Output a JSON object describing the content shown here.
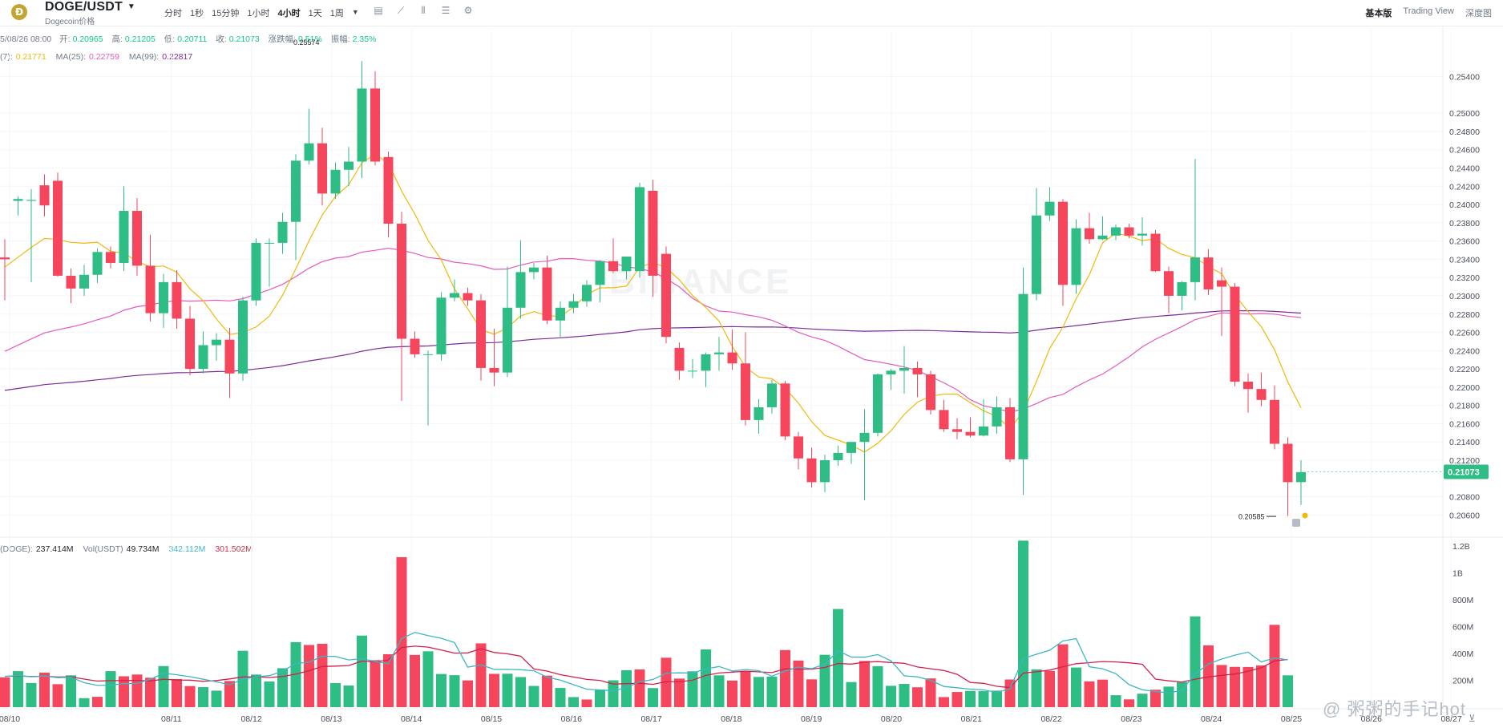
{
  "header": {
    "logo_glyph": "Ð",
    "pair": "DOGE/USDT",
    "subname": "Dogecoin价格",
    "intervals": [
      "分时",
      "1秒",
      "15分钟",
      "1小时",
      "4小时",
      "1天",
      "1周"
    ],
    "active_interval": "4小时",
    "views": [
      "基本版",
      "Trading View",
      "深度图"
    ],
    "active_view": "基本版"
  },
  "ohlc": {
    "date": "5/08/26 08:00",
    "open_label": "开:",
    "open": "0.20965",
    "high_label": "高:",
    "high": "0.21205",
    "low_label": "低:",
    "low": "0.20711",
    "close_label": "收:",
    "close": "0.21073",
    "change_label": "涨跌幅:",
    "change": "0.51%",
    "amp_label": "振幅:",
    "amp": "2.35%"
  },
  "ma": {
    "ma7_label": "(7):",
    "ma7": "0.21771",
    "ma25_label": "MA(25):",
    "ma25": "0.22759",
    "ma99_label": "MA(99):",
    "ma99": "0.22817"
  },
  "volume": {
    "label": "(DOGE):",
    "doge": "237.414M",
    "usdt_label": "Vol(USDT)",
    "usdt": "49.734M",
    "ma1": "342.112M",
    "ma2": "301.502M"
  },
  "colors": {
    "up": "#2ebd85",
    "down": "#f6465d",
    "ma7": "#f0b90b",
    "ma25": "#e45bbd",
    "ma99": "#7b2b9a",
    "vma1": "#3cb6c6",
    "vma2": "#d3204d",
    "text_green": "#0ecb81",
    "text_pink": "#cf304a"
  },
  "watermark_text": "BINANCE",
  "overlay_watermark": "@ 粥粥的手记hot",
  "icons": [
    "candle-settings-icon",
    "indicator-icon",
    "compare-icon",
    "layout-icon",
    "gear-icon"
  ],
  "chart_data": {
    "type": "candlestick",
    "interval": "4小时",
    "price_axis": [
      "0.25400",
      "0.25000",
      "0.24800",
      "0.24600",
      "0.24400",
      "0.24200",
      "0.24000",
      "0.23800",
      "0.23600",
      "0.23400",
      "0.23200",
      "0.23000",
      "0.22800",
      "0.22600",
      "0.22400",
      "0.22200",
      "0.22000",
      "0.21800",
      "0.21600",
      "0.21400",
      "0.21200",
      "0.20800",
      "0.20600"
    ],
    "ylim": [
      0.2041,
      0.2573
    ],
    "current_price": "0.21073",
    "high_marker": "0.25574",
    "low_marker": "0.20585",
    "volume_axis": [
      "1.2B",
      "1B",
      "800M",
      "600M",
      "400M",
      "200M"
    ],
    "volume_ylim": [
      0,
      1230
    ],
    "date_labels": [
      "08/10",
      "08/11",
      "08/12",
      "08/13",
      "08/14",
      "08/15",
      "08/16",
      "08/17",
      "08/18",
      "08/19",
      "08/20",
      "08/21",
      "08/22",
      "08/23",
      "08/24",
      "08/25",
      "08/26",
      "08/27",
      "08"
    ],
    "candles": [
      {
        "o": 0.2342,
        "h": 0.2362,
        "l": 0.2295,
        "c": 0.234
      },
      {
        "o": 0.2404,
        "h": 0.2409,
        "l": 0.2388,
        "c": 0.2406
      },
      {
        "o": 0.2404,
        "h": 0.2417,
        "l": 0.2315,
        "c": 0.2405
      },
      {
        "o": 0.2421,
        "h": 0.2433,
        "l": 0.2387,
        "c": 0.2399
      },
      {
        "o": 0.2426,
        "h": 0.2435,
        "l": 0.2321,
        "c": 0.2322
      },
      {
        "o": 0.2322,
        "h": 0.233,
        "l": 0.2292,
        "c": 0.2308
      },
      {
        "o": 0.2308,
        "h": 0.2334,
        "l": 0.23,
        "c": 0.2323
      },
      {
        "o": 0.2323,
        "h": 0.2352,
        "l": 0.2314,
        "c": 0.2348
      },
      {
        "o": 0.2348,
        "h": 0.2354,
        "l": 0.233,
        "c": 0.2336
      },
      {
        "o": 0.2336,
        "h": 0.242,
        "l": 0.2327,
        "c": 0.2393
      },
      {
        "o": 0.2393,
        "h": 0.2407,
        "l": 0.2322,
        "c": 0.2333
      },
      {
        "o": 0.2333,
        "h": 0.2367,
        "l": 0.2272,
        "c": 0.2281
      },
      {
        "o": 0.2281,
        "h": 0.2324,
        "l": 0.2265,
        "c": 0.2315
      },
      {
        "o": 0.2315,
        "h": 0.2328,
        "l": 0.2264,
        "c": 0.2275
      },
      {
        "o": 0.2275,
        "h": 0.2289,
        "l": 0.2213,
        "c": 0.222
      },
      {
        "o": 0.222,
        "h": 0.2261,
        "l": 0.2215,
        "c": 0.2246
      },
      {
        "o": 0.2246,
        "h": 0.2259,
        "l": 0.2229,
        "c": 0.2252
      },
      {
        "o": 0.2252,
        "h": 0.2265,
        "l": 0.2188,
        "c": 0.2215
      },
      {
        "o": 0.2215,
        "h": 0.2299,
        "l": 0.2207,
        "c": 0.2295
      },
      {
        "o": 0.2295,
        "h": 0.2363,
        "l": 0.2289,
        "c": 0.2358
      },
      {
        "o": 0.2358,
        "h": 0.2363,
        "l": 0.231,
        "c": 0.2358
      },
      {
        "o": 0.2358,
        "h": 0.2391,
        "l": 0.2346,
        "c": 0.2381
      },
      {
        "o": 0.2381,
        "h": 0.2455,
        "l": 0.2339,
        "c": 0.2448
      },
      {
        "o": 0.2448,
        "h": 0.2505,
        "l": 0.2444,
        "c": 0.2467
      },
      {
        "o": 0.2467,
        "h": 0.2484,
        "l": 0.2399,
        "c": 0.2412
      },
      {
        "o": 0.2412,
        "h": 0.2446,
        "l": 0.2406,
        "c": 0.2438
      },
      {
        "o": 0.2438,
        "h": 0.2463,
        "l": 0.242,
        "c": 0.2447
      },
      {
        "o": 0.2447,
        "h": 0.2557,
        "l": 0.2429,
        "c": 0.2527
      },
      {
        "o": 0.2527,
        "h": 0.2546,
        "l": 0.2443,
        "c": 0.2447
      },
      {
        "o": 0.2452,
        "h": 0.2458,
        "l": 0.2364,
        "c": 0.2379
      },
      {
        "o": 0.2379,
        "h": 0.2392,
        "l": 0.2185,
        "c": 0.2253
      },
      {
        "o": 0.2253,
        "h": 0.2261,
        "l": 0.2232,
        "c": 0.2236
      },
      {
        "o": 0.2236,
        "h": 0.224,
        "l": 0.2158,
        "c": 0.2236
      },
      {
        "o": 0.2236,
        "h": 0.2304,
        "l": 0.2229,
        "c": 0.2298
      },
      {
        "o": 0.2298,
        "h": 0.2318,
        "l": 0.2294,
        "c": 0.2303
      },
      {
        "o": 0.2303,
        "h": 0.2309,
        "l": 0.2289,
        "c": 0.2295
      },
      {
        "o": 0.2295,
        "h": 0.2302,
        "l": 0.2207,
        "c": 0.2221
      },
      {
        "o": 0.2221,
        "h": 0.2264,
        "l": 0.2201,
        "c": 0.2216
      },
      {
        "o": 0.2216,
        "h": 0.2332,
        "l": 0.2211,
        "c": 0.2287
      },
      {
        "o": 0.2287,
        "h": 0.2361,
        "l": 0.2275,
        "c": 0.2326
      },
      {
        "o": 0.2326,
        "h": 0.2336,
        "l": 0.2318,
        "c": 0.2331
      },
      {
        "o": 0.2331,
        "h": 0.2344,
        "l": 0.2269,
        "c": 0.2273
      },
      {
        "o": 0.2273,
        "h": 0.2294,
        "l": 0.2255,
        "c": 0.2287
      },
      {
        "o": 0.2287,
        "h": 0.2302,
        "l": 0.2281,
        "c": 0.2294
      },
      {
        "o": 0.2294,
        "h": 0.2317,
        "l": 0.2288,
        "c": 0.2312
      },
      {
        "o": 0.2312,
        "h": 0.2339,
        "l": 0.2293,
        "c": 0.2338
      },
      {
        "o": 0.2338,
        "h": 0.2363,
        "l": 0.2325,
        "c": 0.2327
      },
      {
        "o": 0.2327,
        "h": 0.2339,
        "l": 0.2318,
        "c": 0.2343
      },
      {
        "o": 0.2327,
        "h": 0.2424,
        "l": 0.232,
        "c": 0.2419
      },
      {
        "o": 0.2415,
        "h": 0.2427,
        "l": 0.2299,
        "c": 0.2322
      },
      {
        "o": 0.2346,
        "h": 0.2354,
        "l": 0.2248,
        "c": 0.2255
      },
      {
        "o": 0.2243,
        "h": 0.2249,
        "l": 0.2208,
        "c": 0.2218
      },
      {
        "o": 0.2218,
        "h": 0.2231,
        "l": 0.221,
        "c": 0.2218
      },
      {
        "o": 0.2218,
        "h": 0.2238,
        "l": 0.22,
        "c": 0.2236
      },
      {
        "o": 0.2236,
        "h": 0.2255,
        "l": 0.2218,
        "c": 0.2238
      },
      {
        "o": 0.2238,
        "h": 0.2263,
        "l": 0.2219,
        "c": 0.2226
      },
      {
        "o": 0.2226,
        "h": 0.226,
        "l": 0.2158,
        "c": 0.2164
      },
      {
        "o": 0.2164,
        "h": 0.2187,
        "l": 0.2149,
        "c": 0.2178
      },
      {
        "o": 0.2178,
        "h": 0.2208,
        "l": 0.2171,
        "c": 0.2204
      },
      {
        "o": 0.2204,
        "h": 0.2207,
        "l": 0.2142,
        "c": 0.2146
      },
      {
        "o": 0.2146,
        "h": 0.2151,
        "l": 0.211,
        "c": 0.2122
      },
      {
        "o": 0.2122,
        "h": 0.2134,
        "l": 0.209,
        "c": 0.2096
      },
      {
        "o": 0.2096,
        "h": 0.2126,
        "l": 0.2085,
        "c": 0.212
      },
      {
        "o": 0.212,
        "h": 0.2136,
        "l": 0.2114,
        "c": 0.2128
      },
      {
        "o": 0.2128,
        "h": 0.2137,
        "l": 0.2116,
        "c": 0.214
      },
      {
        "o": 0.214,
        "h": 0.2176,
        "l": 0.2076,
        "c": 0.215
      },
      {
        "o": 0.215,
        "h": 0.2215,
        "l": 0.2146,
        "c": 0.2214
      },
      {
        "o": 0.2214,
        "h": 0.222,
        "l": 0.2197,
        "c": 0.2218
      },
      {
        "o": 0.2218,
        "h": 0.2245,
        "l": 0.2193,
        "c": 0.2221
      },
      {
        "o": 0.2221,
        "h": 0.2228,
        "l": 0.2189,
        "c": 0.2214
      },
      {
        "o": 0.2214,
        "h": 0.2218,
        "l": 0.217,
        "c": 0.2175
      },
      {
        "o": 0.2175,
        "h": 0.2186,
        "l": 0.2151,
        "c": 0.2154
      },
      {
        "o": 0.2154,
        "h": 0.2166,
        "l": 0.2143,
        "c": 0.2151
      },
      {
        "o": 0.2151,
        "h": 0.2167,
        "l": 0.2145,
        "c": 0.2147
      },
      {
        "o": 0.2147,
        "h": 0.2187,
        "l": 0.2146,
        "c": 0.2157
      },
      {
        "o": 0.2157,
        "h": 0.219,
        "l": 0.2149,
        "c": 0.2178
      },
      {
        "o": 0.2178,
        "h": 0.2188,
        "l": 0.2118,
        "c": 0.2121
      },
      {
        "o": 0.2121,
        "h": 0.2331,
        "l": 0.2082,
        "c": 0.2302
      },
      {
        "o": 0.2302,
        "h": 0.2418,
        "l": 0.2295,
        "c": 0.2388
      },
      {
        "o": 0.2388,
        "h": 0.2419,
        "l": 0.2382,
        "c": 0.2403
      },
      {
        "o": 0.2403,
        "h": 0.2406,
        "l": 0.2289,
        "c": 0.2312
      },
      {
        "o": 0.2312,
        "h": 0.2384,
        "l": 0.2302,
        "c": 0.2374
      },
      {
        "o": 0.2374,
        "h": 0.2391,
        "l": 0.2357,
        "c": 0.2362
      },
      {
        "o": 0.2362,
        "h": 0.2387,
        "l": 0.2361,
        "c": 0.2366
      },
      {
        "o": 0.2366,
        "h": 0.2378,
        "l": 0.2361,
        "c": 0.2375
      },
      {
        "o": 0.2375,
        "h": 0.2379,
        "l": 0.2363,
        "c": 0.2366
      },
      {
        "o": 0.2366,
        "h": 0.2386,
        "l": 0.2355,
        "c": 0.2368
      },
      {
        "o": 0.2368,
        "h": 0.2372,
        "l": 0.2326,
        "c": 0.2327
      },
      {
        "o": 0.2327,
        "h": 0.2332,
        "l": 0.2281,
        "c": 0.23
      },
      {
        "o": 0.23,
        "h": 0.2316,
        "l": 0.2284,
        "c": 0.2315
      },
      {
        "o": 0.2315,
        "h": 0.245,
        "l": 0.2295,
        "c": 0.2342
      },
      {
        "o": 0.2342,
        "h": 0.2351,
        "l": 0.2301,
        "c": 0.2307
      },
      {
        "o": 0.2317,
        "h": 0.2331,
        "l": 0.2256,
        "c": 0.231
      },
      {
        "o": 0.231,
        "h": 0.2314,
        "l": 0.2201,
        "c": 0.2206
      },
      {
        "o": 0.2206,
        "h": 0.2215,
        "l": 0.2172,
        "c": 0.2198
      },
      {
        "o": 0.2198,
        "h": 0.2216,
        "l": 0.2179,
        "c": 0.2186
      },
      {
        "o": 0.2186,
        "h": 0.2202,
        "l": 0.2132,
        "c": 0.2138
      },
      {
        "o": 0.2138,
        "h": 0.2145,
        "l": 0.2059,
        "c": 0.2096
      },
      {
        "o": 0.2096,
        "h": 0.212,
        "l": 0.2071,
        "c": 0.2107
      }
    ],
    "volumes": [
      {
        "v": 222,
        "up": false
      },
      {
        "v": 268,
        "up": true
      },
      {
        "v": 180,
        "up": true
      },
      {
        "v": 257,
        "up": false
      },
      {
        "v": 171,
        "up": false
      },
      {
        "v": 237,
        "up": true
      },
      {
        "v": 67,
        "up": true
      },
      {
        "v": 77,
        "up": false
      },
      {
        "v": 268,
        "up": true
      },
      {
        "v": 230,
        "up": false
      },
      {
        "v": 243,
        "up": false
      },
      {
        "v": 219,
        "up": false
      },
      {
        "v": 306,
        "up": true
      },
      {
        "v": 209,
        "up": false
      },
      {
        "v": 157,
        "up": false
      },
      {
        "v": 149,
        "up": true
      },
      {
        "v": 123,
        "up": true
      },
      {
        "v": 195,
        "up": false
      },
      {
        "v": 420,
        "up": true
      },
      {
        "v": 243,
        "up": true
      },
      {
        "v": 191,
        "up": true
      },
      {
        "v": 290,
        "up": true
      },
      {
        "v": 484,
        "up": true
      },
      {
        "v": 463,
        "up": false
      },
      {
        "v": 472,
        "up": false
      },
      {
        "v": 179,
        "up": true
      },
      {
        "v": 161,
        "up": true
      },
      {
        "v": 533,
        "up": true
      },
      {
        "v": 350,
        "up": false
      },
      {
        "v": 394,
        "up": false
      },
      {
        "v": 1117,
        "up": false
      },
      {
        "v": 389,
        "up": false
      },
      {
        "v": 416,
        "up": true
      },
      {
        "v": 247,
        "up": true
      },
      {
        "v": 238,
        "up": true
      },
      {
        "v": 199,
        "up": false
      },
      {
        "v": 475,
        "up": false
      },
      {
        "v": 248,
        "up": false
      },
      {
        "v": 249,
        "up": true
      },
      {
        "v": 224,
        "up": true
      },
      {
        "v": 158,
        "up": true
      },
      {
        "v": 235,
        "up": false
      },
      {
        "v": 143,
        "up": true
      },
      {
        "v": 75,
        "up": true
      },
      {
        "v": 57,
        "up": false
      },
      {
        "v": 131,
        "up": true
      },
      {
        "v": 200,
        "up": true
      },
      {
        "v": 275,
        "up": true
      },
      {
        "v": 281,
        "up": false
      },
      {
        "v": 142,
        "up": true
      },
      {
        "v": 368,
        "up": false
      },
      {
        "v": 213,
        "up": false
      },
      {
        "v": 267,
        "up": true
      },
      {
        "v": 430,
        "up": true
      },
      {
        "v": 237,
        "up": true
      },
      {
        "v": 198,
        "up": false
      },
      {
        "v": 267,
        "up": false
      },
      {
        "v": 225,
        "up": true
      },
      {
        "v": 228,
        "up": true
      },
      {
        "v": 425,
        "up": false
      },
      {
        "v": 347,
        "up": false
      },
      {
        "v": 207,
        "up": false
      },
      {
        "v": 390,
        "up": true
      },
      {
        "v": 731,
        "up": true
      },
      {
        "v": 187,
        "up": true
      },
      {
        "v": 344,
        "up": false
      },
      {
        "v": 305,
        "up": true
      },
      {
        "v": 159,
        "up": true
      },
      {
        "v": 173,
        "up": true
      },
      {
        "v": 148,
        "up": false
      },
      {
        "v": 214,
        "up": false
      },
      {
        "v": 75,
        "up": false
      },
      {
        "v": 113,
        "up": false
      },
      {
        "v": 121,
        "up": true
      },
      {
        "v": 119,
        "up": true
      },
      {
        "v": 123,
        "up": true
      },
      {
        "v": 206,
        "up": false
      },
      {
        "v": 1240,
        "up": true
      },
      {
        "v": 281,
        "up": true
      },
      {
        "v": 269,
        "up": false
      },
      {
        "v": 468,
        "up": false
      },
      {
        "v": 295,
        "up": true
      },
      {
        "v": 192,
        "up": false
      },
      {
        "v": 205,
        "up": false
      },
      {
        "v": 89,
        "up": true
      },
      {
        "v": 58,
        "up": false
      },
      {
        "v": 100,
        "up": true
      },
      {
        "v": 130,
        "up": false
      },
      {
        "v": 153,
        "up": true
      },
      {
        "v": 187,
        "up": true
      },
      {
        "v": 676,
        "up": true
      },
      {
        "v": 460,
        "up": false
      },
      {
        "v": 314,
        "up": false
      },
      {
        "v": 300,
        "up": false
      },
      {
        "v": 299,
        "up": false
      },
      {
        "v": 311,
        "up": false
      },
      {
        "v": 613,
        "up": false
      },
      {
        "v": 237,
        "up": true
      }
    ]
  }
}
